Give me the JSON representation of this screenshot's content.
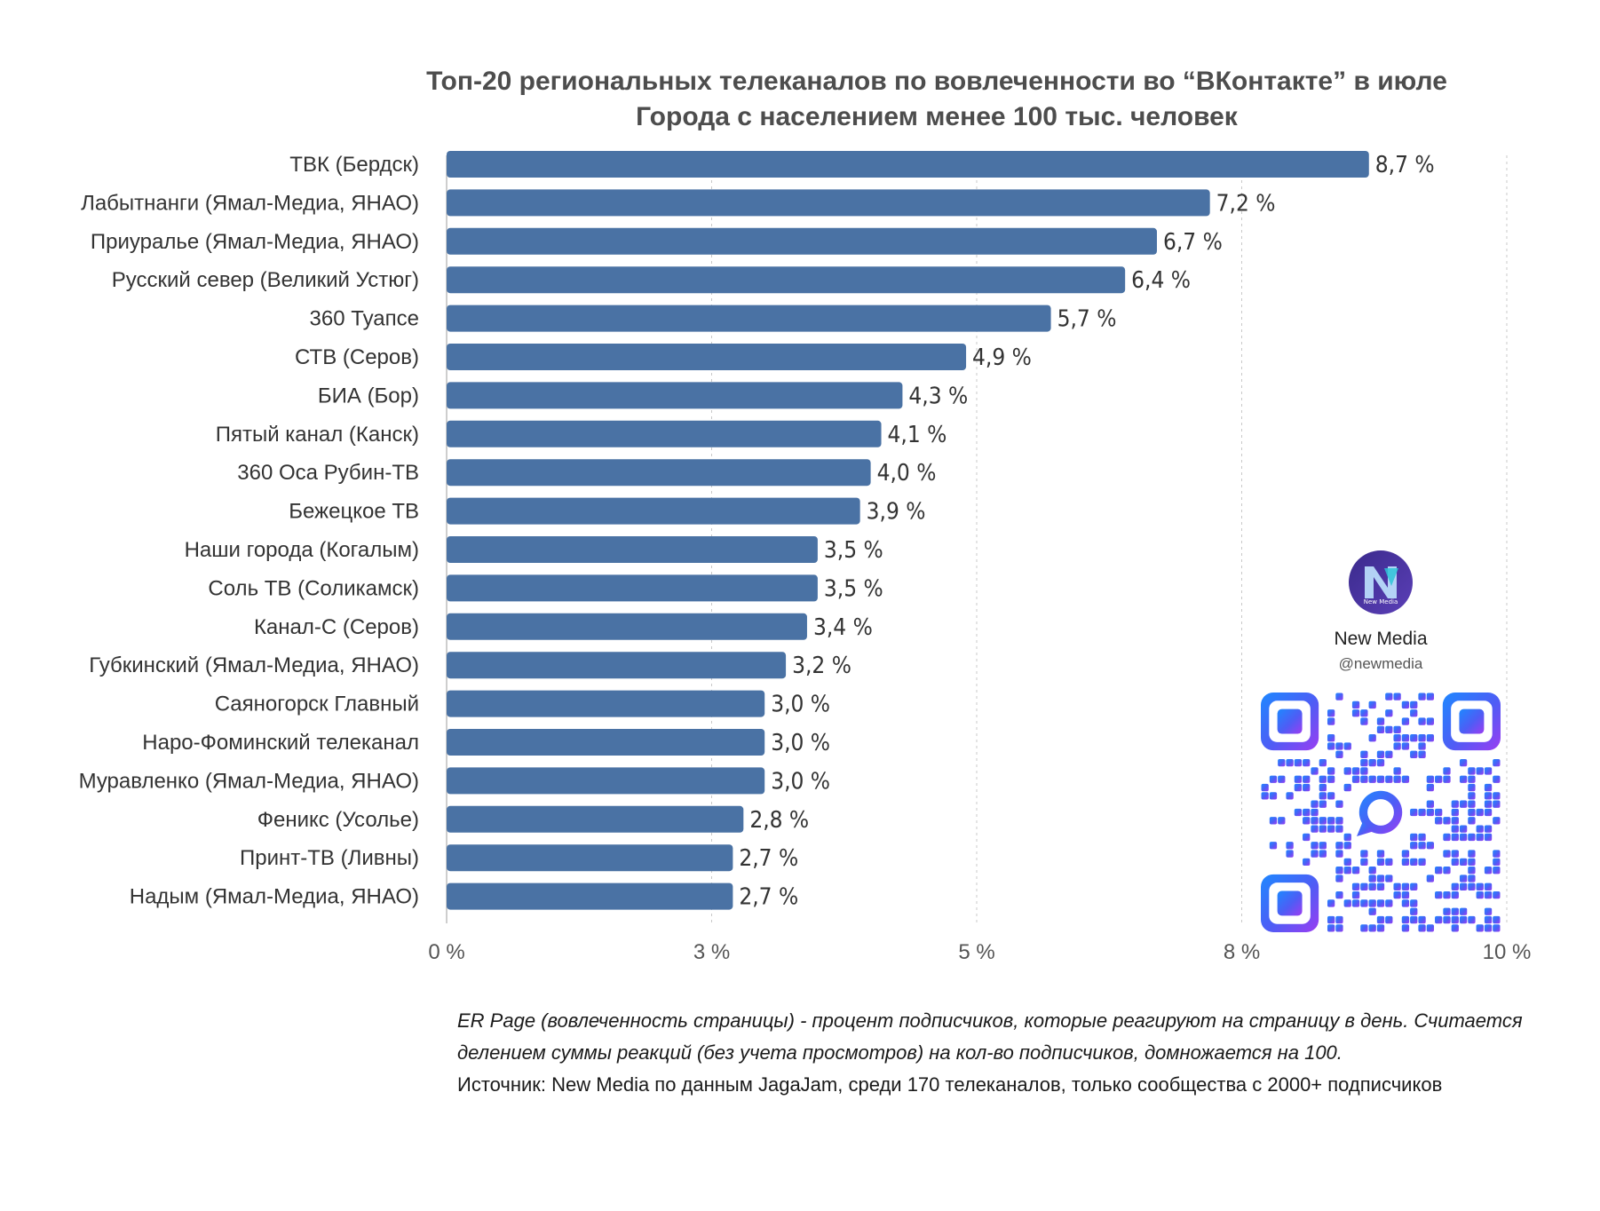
{
  "title": {
    "line1": "Топ-20 региональных телеканалов по вовлеченности во “ВКонтакте” в июле",
    "line2": "Города с населением менее 100 тыс. человек"
  },
  "chart_data": {
    "type": "bar",
    "orientation": "horizontal",
    "categories": [
      "ТВК (Бердск)",
      "Лабытнанги (Ямал-Медиа, ЯНАО)",
      "Приуралье (Ямал-Медиа, ЯНАО)",
      "Русский север (Великий Устюг)",
      "360 Туапсе",
      "СТВ (Серов)",
      "БИА (Бор)",
      "Пятый канал (Канск)",
      "360 Оса Рубин-ТВ",
      "Бежецкое ТВ",
      "Наши города (Когалым)",
      "Соль ТВ (Соликамск)",
      "Канал-С (Серов)",
      "Губкинский (Ямал-Медиа, ЯНАО)",
      "Саяногорск Главный",
      "Наро-Фоминский телеканал",
      "Муравленко (Ямал-Медиа, ЯНАО)",
      "Феникс (Усолье)",
      "Принт-ТВ (Ливны)",
      "Надым (Ямал-Медиа, ЯНАО)"
    ],
    "values": [
      8.7,
      7.2,
      6.7,
      6.4,
      5.7,
      4.9,
      4.3,
      4.1,
      4.0,
      3.9,
      3.5,
      3.5,
      3.4,
      3.2,
      3.0,
      3.0,
      3.0,
      2.8,
      2.7,
      2.7
    ],
    "value_labels": [
      "8,7 %",
      "7,2 %",
      "6,7 %",
      "6,4 %",
      "5,7 %",
      "4,9 %",
      "4,3 %",
      "4,1 %",
      "4,0 %",
      "3,9 %",
      "3,5 %",
      "3,5 %",
      "3,4 %",
      "3,2 %",
      "3,0 %",
      "3,0 %",
      "3,0 %",
      "2,8 %",
      "2,7 %",
      "2,7 %"
    ],
    "x_ticks": [
      0,
      2.5,
      5,
      7.5,
      10
    ],
    "x_tick_labels": [
      "0 %",
      "3 %",
      "5 %",
      "8 %",
      "10 %"
    ],
    "xlim": [
      0,
      10
    ],
    "grid": "vertical dashed",
    "bar_color": "#4a72a4"
  },
  "brand": {
    "name": "New Media",
    "handle": "@newmedia",
    "logo_text": "New Media"
  },
  "notes": {
    "definition": "ER Page (вовлеченность страницы) - процент подписчиков, которые реагируют на страницу в день. Считается делением суммы реакций (без учета просмотров) на кол-во подписчиков, домножается на 100.",
    "source": "Источник: New Media по данным JagaJam, среди 170 телеканалов, только сообщества с 2000+ подписчиков"
  }
}
